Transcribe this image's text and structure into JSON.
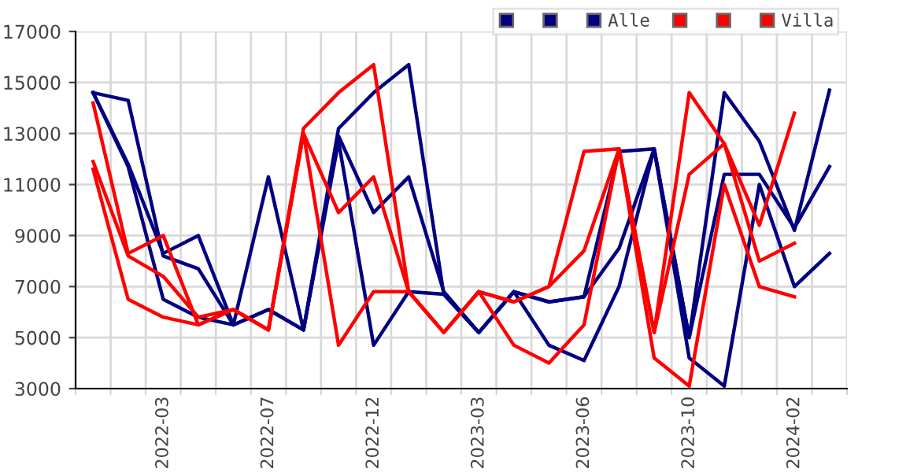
{
  "chart_data": {
    "type": "line",
    "categories": [
      null,
      null,
      "2022-03",
      null,
      null,
      "2022-07",
      null,
      null,
      "2022-12",
      null,
      null,
      "2023-03",
      null,
      null,
      "2023-06",
      null,
      null,
      "2023-10",
      null,
      null,
      "2024-02",
      null
    ],
    "series": [
      {
        "color": "#000080",
        "values": [
          14600,
          14300,
          8200,
          7700,
          5500,
          6100,
          5300,
          13200,
          14600,
          15700,
          6700,
          5200,
          6800,
          6400,
          6600,
          12300,
          12400,
          5000,
          14600,
          12700,
          9200,
          14700
        ]
      },
      {
        "color": "#000080",
        "values": [
          14600,
          11800,
          8300,
          9000,
          5500,
          11300,
          5300,
          12900,
          9900,
          11300,
          6800,
          5200,
          6800,
          6400,
          6600,
          8500,
          12400,
          5000,
          11400,
          11400,
          9300,
          11700
        ]
      },
      {
        "name": "Alle",
        "color": "#000080",
        "values": [
          14600,
          11700,
          6500,
          5800,
          5500,
          6100,
          5300,
          12700,
          4700,
          6800,
          6700,
          5200,
          6800,
          4700,
          4100,
          7000,
          12400,
          4200,
          3100,
          11000,
          7000,
          8300
        ]
      },
      {
        "color": "#ff0000",
        "values": [
          14200,
          8300,
          9000,
          5500,
          6100,
          5300,
          13200,
          14600,
          15700,
          6800,
          5200,
          6800,
          6400,
          7000,
          12300,
          12400,
          5200,
          14600,
          12600,
          9400,
          13800,
          null
        ]
      },
      {
        "color": "#ff0000",
        "values": [
          11900,
          8200,
          7400,
          5800,
          6100,
          5300,
          13000,
          9900,
          11300,
          6800,
          5200,
          6800,
          6400,
          7000,
          8400,
          12400,
          5200,
          11400,
          12600,
          8000,
          8700,
          null
        ]
      },
      {
        "name": "Villa",
        "color": "#ff0000",
        "values": [
          11600,
          6500,
          5800,
          5500,
          6100,
          5300,
          13000,
          4700,
          6800,
          6800,
          5200,
          6800,
          4700,
          4000,
          5500,
          12400,
          4200,
          3100,
          11000,
          7000,
          6600,
          null
        ]
      }
    ],
    "ylim": [
      3000,
      17000
    ],
    "yticks": [
      3000,
      5000,
      7000,
      9000,
      11000,
      13000,
      15000,
      17000
    ],
    "grid": true,
    "legend": "top right",
    "marker": "none",
    "line_style": "solid"
  }
}
